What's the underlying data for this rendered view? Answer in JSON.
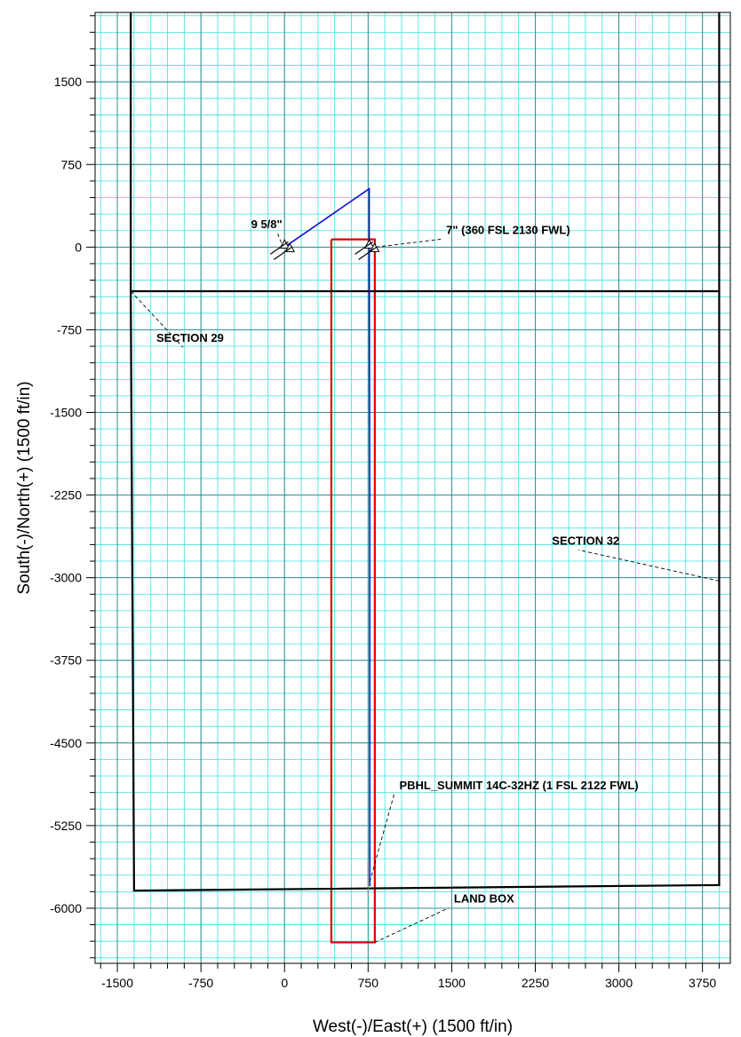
{
  "chart_data": {
    "type": "line",
    "title": "",
    "xlabel": "West(-)/East(+) (1500 ft/in)",
    "ylabel": "South(-)/North(+) (1500 ft/in)",
    "xlim": [
      -1700,
      4000
    ],
    "ylim": [
      -6500,
      2130
    ],
    "x_ticks": [
      -1500,
      -750,
      0,
      750,
      1500,
      2250,
      3000,
      3750
    ],
    "y_ticks": [
      1500,
      750,
      0,
      -750,
      -1500,
      -2250,
      -3000,
      -3750,
      -4500,
      -5250,
      -6000
    ],
    "grid": true,
    "colors": {
      "minor_grid": "#40e0e0",
      "major_grid": "#3a8c8c",
      "section_lines": "#000000",
      "well_path": "#1010d0",
      "land_box": "#e00000",
      "leader": "#000000"
    },
    "series": [
      {
        "id": "section-29",
        "points": [
          [
            -1380,
            2130
          ],
          [
            -1380,
            -400
          ],
          [
            3900,
            -400
          ],
          [
            3900,
            2130
          ]
        ]
      },
      {
        "id": "section-32",
        "points": [
          [
            -1380,
            -400
          ],
          [
            -1350,
            -5840
          ],
          [
            3900,
            -5790
          ],
          [
            3900,
            -400
          ]
        ]
      },
      {
        "id": "well-path",
        "points": [
          [
            0,
            0
          ],
          [
            760,
            530
          ],
          [
            760,
            0
          ],
          [
            765,
            -2500
          ],
          [
            765,
            -5800
          ]
        ]
      },
      {
        "id": "land-box",
        "points": [
          [
            420,
            70
          ],
          [
            810,
            70
          ],
          [
            810,
            -6310
          ],
          [
            420,
            -6310
          ],
          [
            420,
            70
          ]
        ]
      }
    ],
    "casing_marks": [
      {
        "id": "casing-9-5-8",
        "x": 0,
        "y": 0
      },
      {
        "id": "casing-7",
        "x": 760,
        "y": 0
      }
    ],
    "annotations": [
      {
        "id": "label-9-5-8",
        "text": "9 5/8\"",
        "x": -300,
        "y": 170,
        "point": [
          -30,
          40
        ]
      },
      {
        "id": "label-7",
        "text": "7\" (360 FSL 2130 FWL)",
        "x": 1450,
        "y": 120,
        "point": [
          820,
          0
        ]
      },
      {
        "id": "label-section-29",
        "text": "SECTION 29",
        "x": -1150,
        "y": -860,
        "point": [
          -1380,
          -400
        ]
      },
      {
        "id": "label-section-32",
        "text": "SECTION 32",
        "x": 2400,
        "y": -2700,
        "point": [
          3900,
          -3030
        ]
      },
      {
        "id": "label-pbhl",
        "text": "PBHL_SUMMIT 14C-32HZ (1 FSL 2122 FWL)",
        "x": 1030,
        "y": -4920,
        "point": [
          765,
          -5760
        ]
      },
      {
        "id": "label-land-box",
        "text": "LAND BOX",
        "x": 1520,
        "y": -5950,
        "point": [
          810,
          -6310
        ]
      }
    ]
  }
}
